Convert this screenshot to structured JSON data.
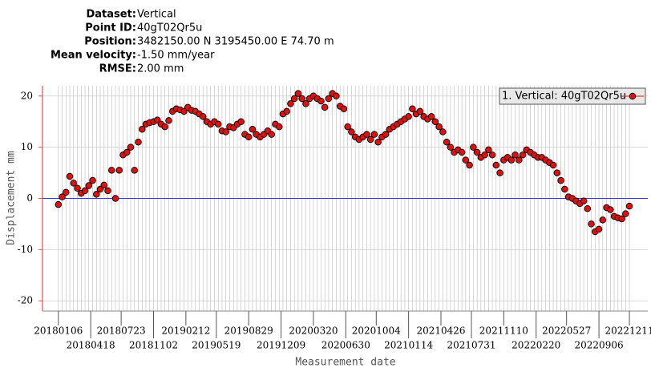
{
  "chart_data": {
    "type": "scatter",
    "info": [
      {
        "label": "Dataset:",
        "value": "Vertical"
      },
      {
        "label": "Point ID:",
        "value": "40gT02Qr5u"
      },
      {
        "label": "Position:",
        "value": "3482150.00 N 3195450.00 E 74.70 m"
      },
      {
        "label": "Mean velocity:",
        "value": "-1.50 mm/year"
      },
      {
        "label": "RMSE:",
        "value": "2.00 mm"
      }
    ],
    "xlabel": "Measurement date",
    "ylabel": "Displacement mm",
    "xlim": [
      "20171117",
      "20230207"
    ],
    "ylim": [
      -22,
      22
    ],
    "yticks": [
      -20,
      -10,
      0,
      10,
      20
    ],
    "xticks": [
      "20180106",
      "20180418",
      "20180723",
      "20181102",
      "20190212",
      "20190519",
      "20190829",
      "20191209",
      "20200320",
      "20200630",
      "20201004",
      "20210114",
      "20210426",
      "20210731",
      "20211110",
      "20220220",
      "20220527",
      "20220906",
      "20221211"
    ],
    "grid": true,
    "zero_line": true,
    "legend": "upper right",
    "x": [
      "20180106",
      "20180118",
      "20180130",
      "20180211",
      "20180223",
      "20180307",
      "20180319",
      "20180331",
      "20180412",
      "20180424",
      "20180506",
      "20180518",
      "20180530",
      "20180611",
      "20180623",
      "20180705",
      "20180717",
      "20180729",
      "20180810",
      "20180822",
      "20180903",
      "20180915",
      "20180927",
      "20181009",
      "20181021",
      "20181102",
      "20181114",
      "20181126",
      "20181208",
      "20181220",
      "20190101",
      "20190113",
      "20190125",
      "20190206",
      "20190218",
      "20190302",
      "20190314",
      "20190326",
      "20190407",
      "20190419",
      "20190501",
      "20190513",
      "20190525",
      "20190606",
      "20190618",
      "20190630",
      "20190712",
      "20190724",
      "20190805",
      "20190817",
      "20190829",
      "20190910",
      "20190922",
      "20191004",
      "20191016",
      "20191028",
      "20191109",
      "20191121",
      "20191203",
      "20191215",
      "20191227",
      "20200108",
      "20200120",
      "20200201",
      "20200213",
      "20200225",
      "20200308",
      "20200320",
      "20200401",
      "20200413",
      "20200425",
      "20200507",
      "20200519",
      "20200531",
      "20200612",
      "20200624",
      "20200706",
      "20200718",
      "20200730",
      "20200811",
      "20200823",
      "20200904",
      "20200916",
      "20200928",
      "20201010",
      "20201022",
      "20201103",
      "20201115",
      "20201127",
      "20201209",
      "20201221",
      "20210102",
      "20210114",
      "20210126",
      "20210207",
      "20210219",
      "20210303",
      "20210315",
      "20210327",
      "20210408",
      "20210420",
      "20210502",
      "20210514",
      "20210526",
      "20210607",
      "20210619",
      "20210701",
      "20210713",
      "20210725",
      "20210806",
      "20210818",
      "20210830",
      "20210911",
      "20210923",
      "20211005",
      "20211017",
      "20211029",
      "20211110",
      "20211122",
      "20211204",
      "20211216",
      "20211228",
      "20220109",
      "20220121",
      "20220202",
      "20220214",
      "20220226",
      "20220310",
      "20220322",
      "20220403",
      "20220415",
      "20220427",
      "20220509",
      "20220521",
      "20220602",
      "20220614",
      "20220626",
      "20220708",
      "20220720",
      "20220801",
      "20220813",
      "20220825",
      "20220906",
      "20220918",
      "20220930",
      "20221012",
      "20221024",
      "20221105",
      "20221117",
      "20221129",
      "20221211"
    ],
    "series": [
      {
        "name": "1. Vertical: 40gT02Qr5u",
        "color": "#e01010",
        "values": [
          -1.2,
          0.3,
          1.2,
          4.3,
          3.0,
          2.0,
          1.0,
          1.5,
          2.5,
          3.5,
          0.8,
          1.8,
          2.6,
          1.5,
          5.5,
          0.0,
          5.5,
          8.5,
          9.0,
          10.0,
          5.5,
          11.0,
          13.5,
          14.5,
          14.8,
          15.0,
          15.3,
          14.5,
          14.0,
          15.2,
          17.0,
          17.5,
          17.3,
          17.0,
          17.8,
          17.2,
          17.0,
          16.5,
          16.0,
          15.0,
          14.5,
          15.0,
          14.5,
          13.2,
          13.0,
          14.0,
          13.8,
          14.5,
          15.0,
          12.5,
          12.0,
          13.5,
          12.5,
          12.0,
          12.5,
          13.2,
          12.5,
          14.5,
          14.0,
          16.5,
          17.0,
          18.5,
          19.5,
          20.5,
          19.5,
          18.5,
          19.5,
          20.0,
          19.5,
          19.0,
          17.8,
          19.5,
          20.5,
          20.0,
          18.0,
          17.5,
          14.0,
          13.0,
          12.0,
          11.5,
          12.0,
          12.5,
          11.5,
          12.5,
          11.0,
          12.0,
          12.5,
          13.5,
          14.0,
          14.5,
          15.0,
          15.5,
          16.0,
          17.5,
          16.5,
          17.0,
          16.0,
          15.5,
          16.0,
          15.0,
          14.0,
          13.0,
          11.0,
          10.0,
          9.0,
          9.5,
          9.0,
          7.5,
          6.5,
          10.0,
          9.0,
          8.0,
          8.5,
          9.5,
          8.5,
          6.5,
          5.0,
          7.5,
          8.0,
          7.5,
          8.5,
          7.5,
          8.5,
          9.5,
          9.0,
          8.5,
          8.0,
          8.0,
          7.5,
          7.0,
          6.5,
          5.0,
          3.5,
          1.8,
          0.3,
          0.0,
          -0.5,
          -1.0,
          -0.5,
          -2.0,
          -5.0,
          -6.5,
          -6.0,
          -4.2,
          -1.8,
          -2.2,
          -3.5,
          -3.8,
          -4.0,
          -3.0,
          -1.5
        ]
      }
    ]
  }
}
